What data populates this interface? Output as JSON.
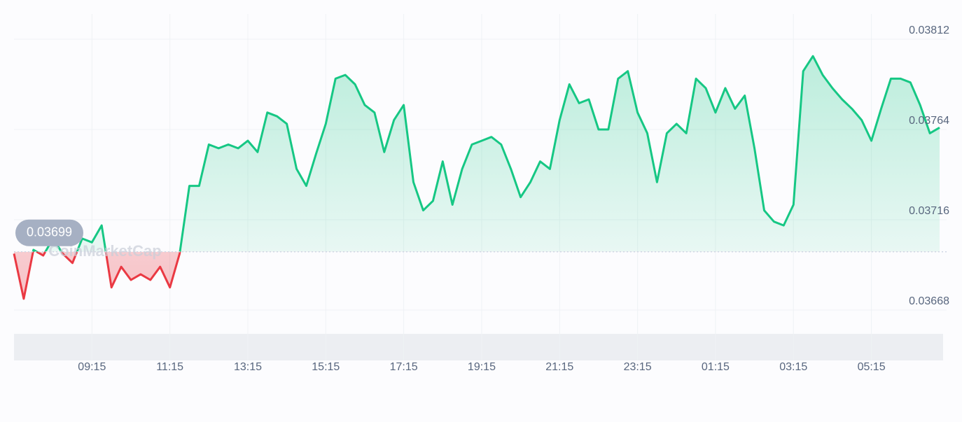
{
  "chart_data": {
    "type": "line",
    "watermark": "CoinMarketCap",
    "baseline": 0.03699,
    "x": [
      "07:15",
      "07:30",
      "07:45",
      "08:00",
      "08:15",
      "08:30",
      "08:45",
      "09:00",
      "09:15",
      "09:30",
      "09:45",
      "10:00",
      "10:15",
      "10:30",
      "10:45",
      "11:00",
      "11:15",
      "11:30",
      "11:45",
      "12:00",
      "12:15",
      "12:30",
      "12:45",
      "13:00",
      "13:15",
      "13:30",
      "13:45",
      "14:00",
      "14:15",
      "14:30",
      "14:45",
      "15:00",
      "15:15",
      "15:30",
      "15:45",
      "16:00",
      "16:15",
      "16:30",
      "16:45",
      "17:00",
      "17:15",
      "17:30",
      "17:45",
      "18:00",
      "18:15",
      "18:30",
      "18:45",
      "19:00",
      "19:15",
      "19:30",
      "19:45",
      "20:00",
      "20:15",
      "20:30",
      "20:45",
      "21:00",
      "21:15",
      "21:30",
      "21:45",
      "22:00",
      "22:15",
      "22:30",
      "22:45",
      "23:00",
      "23:15",
      "23:30",
      "23:45",
      "00:00",
      "00:15",
      "00:30",
      "00:45",
      "01:00",
      "01:15",
      "01:30",
      "01:45",
      "02:00",
      "02:15",
      "02:30",
      "02:45",
      "03:00",
      "03:15",
      "03:30",
      "03:45",
      "04:00",
      "04:15",
      "04:30",
      "04:45",
      "05:00",
      "05:15",
      "05:30",
      "05:45",
      "06:00",
      "06:15",
      "06:30",
      "06:45",
      "07:00"
    ],
    "series": [
      {
        "color_up": "#16c784",
        "color_down": "#ea3943",
        "values": [
          0.03698,
          0.03674,
          0.037,
          0.03697,
          0.03706,
          0.03698,
          0.03693,
          0.03706,
          0.03704,
          0.03713,
          0.0368,
          0.03691,
          0.03684,
          0.03687,
          0.03684,
          0.03691,
          0.0368,
          0.03698,
          0.03734,
          0.03734,
          0.03756,
          0.03754,
          0.03756,
          0.03754,
          0.03758,
          0.03752,
          0.03773,
          0.03771,
          0.03767,
          0.03743,
          0.03734,
          0.03751,
          0.03767,
          0.03791,
          0.03793,
          0.03788,
          0.03777,
          0.03773,
          0.03752,
          0.03769,
          0.03777,
          0.03736,
          0.03721,
          0.03726,
          0.03747,
          0.03724,
          0.03743,
          0.03756,
          0.03758,
          0.0376,
          0.03756,
          0.03743,
          0.03728,
          0.03736,
          0.03747,
          0.03743,
          0.03769,
          0.03788,
          0.03778,
          0.0378,
          0.03764,
          0.03764,
          0.03791,
          0.03795,
          0.03773,
          0.03762,
          0.03736,
          0.03762,
          0.03767,
          0.03762,
          0.03791,
          0.03786,
          0.03773,
          0.03786,
          0.03775,
          0.03782,
          0.03754,
          0.03721,
          0.03715,
          0.03713,
          0.03724,
          0.03795,
          0.03803,
          0.03793,
          0.03786,
          0.0378,
          0.03775,
          0.03769,
          0.03758,
          0.03775,
          0.03791,
          0.03791,
          0.03789,
          0.03777,
          0.03762,
          0.03765
        ]
      }
    ],
    "ylim": [
      0.03668,
      0.03812
    ],
    "yticks": [
      0.03812,
      0.03764,
      0.03716,
      0.03668
    ],
    "xticks": [
      "09:15",
      "11:15",
      "13:15",
      "15:15",
      "17:15",
      "19:15",
      "21:15",
      "23:15",
      "01:15",
      "03:15",
      "05:15"
    ],
    "grid": true
  }
}
